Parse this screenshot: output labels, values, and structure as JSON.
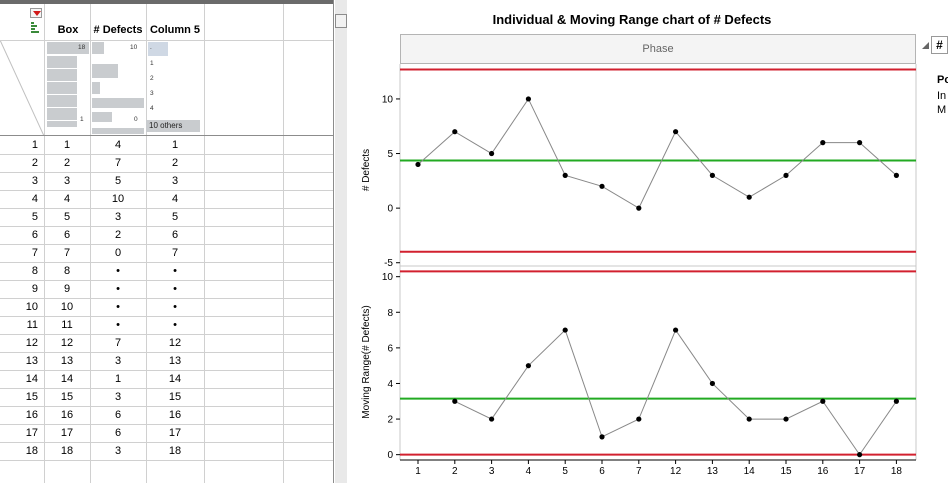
{
  "table": {
    "columns": [
      "Box",
      "# Defects",
      "Column 5"
    ],
    "summary": {
      "box_max": "18",
      "box_min": "1",
      "defects_max": "10",
      "defects_min": "0",
      "col5_top": ".",
      "col5_items": [
        "1",
        "2",
        "3",
        "4"
      ],
      "col5_others": "10 others"
    },
    "rows": [
      {
        "n": "1",
        "box": "1",
        "def": "4",
        "c5": "1"
      },
      {
        "n": "2",
        "box": "2",
        "def": "7",
        "c5": "2"
      },
      {
        "n": "3",
        "box": "3",
        "def": "5",
        "c5": "3"
      },
      {
        "n": "4",
        "box": "4",
        "def": "10",
        "c5": "4"
      },
      {
        "n": "5",
        "box": "5",
        "def": "3",
        "c5": "5"
      },
      {
        "n": "6",
        "box": "6",
        "def": "2",
        "c5": "6"
      },
      {
        "n": "7",
        "box": "7",
        "def": "0",
        "c5": "7"
      },
      {
        "n": "8",
        "box": "8",
        "def": "•",
        "c5": "•"
      },
      {
        "n": "9",
        "box": "9",
        "def": "•",
        "c5": "•"
      },
      {
        "n": "10",
        "box": "10",
        "def": "•",
        "c5": "•"
      },
      {
        "n": "11",
        "box": "11",
        "def": "•",
        "c5": "•"
      },
      {
        "n": "12",
        "box": "12",
        "def": "7",
        "c5": "12"
      },
      {
        "n": "13",
        "box": "13",
        "def": "3",
        "c5": "13"
      },
      {
        "n": "14",
        "box": "14",
        "def": "1",
        "c5": "14"
      },
      {
        "n": "15",
        "box": "15",
        "def": "3",
        "c5": "15"
      },
      {
        "n": "16",
        "box": "16",
        "def": "6",
        "c5": "16"
      },
      {
        "n": "17",
        "box": "17",
        "def": "6",
        "c5": "17"
      },
      {
        "n": "18",
        "box": "18",
        "def": "3",
        "c5": "18"
      }
    ]
  },
  "report": {
    "title": "Individual & Moving Range chart of # Defects",
    "phase_label": "Phase",
    "side_box": "#",
    "side_texts": [
      "Po",
      "In",
      "M"
    ]
  },
  "colors": {
    "limit": "#d2202f",
    "center": "#22aa22",
    "points": "#000000",
    "line": "#888888"
  },
  "chart_data": [
    {
      "type": "line",
      "title": "",
      "ylabel": "# Defects",
      "xlabel": "",
      "categories": [
        "1",
        "2",
        "3",
        "4",
        "5",
        "6",
        "7",
        "12",
        "13",
        "14",
        "15",
        "16",
        "17",
        "18"
      ],
      "values": [
        4,
        7,
        5,
        10,
        3,
        2,
        0,
        7,
        3,
        1,
        3,
        6,
        6,
        3
      ],
      "ucl": 12.7,
      "center": 4.36,
      "lcl": -4.0,
      "ylim": [
        -5.3,
        13.2
      ],
      "yticks": [
        -5,
        0,
        5,
        10
      ]
    },
    {
      "type": "line",
      "title": "",
      "ylabel": "Moving Range(# Defects)",
      "xlabel": "",
      "categories": [
        "1",
        "2",
        "3",
        "4",
        "5",
        "6",
        "7",
        "12",
        "13",
        "14",
        "15",
        "16",
        "17",
        "18"
      ],
      "values": [
        null,
        3,
        2,
        5,
        7,
        1,
        2,
        7,
        4,
        2,
        2,
        3,
        0,
        3
      ],
      "ucl": 10.3,
      "center": 3.15,
      "lcl": 0,
      "ylim": [
        -0.3,
        10.6
      ],
      "yticks": [
        0,
        2,
        4,
        6,
        8,
        10
      ]
    }
  ]
}
